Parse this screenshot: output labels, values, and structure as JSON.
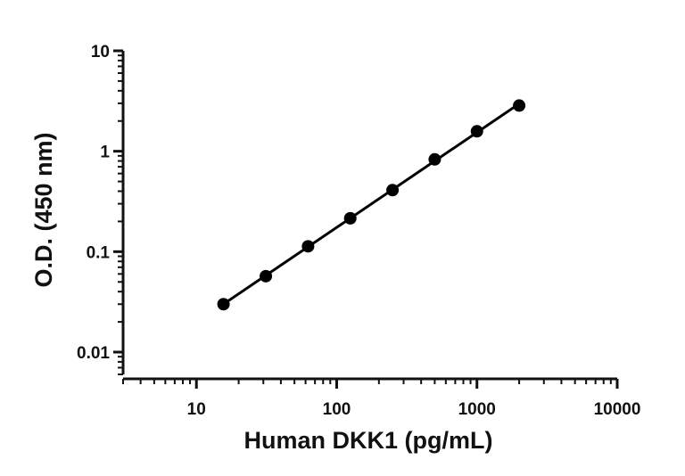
{
  "chart_data": {
    "type": "scatter",
    "title": "",
    "xlabel": "Human DKK1 (pg/mL)",
    "ylabel": "O.D. (450 nm)",
    "x_scale": "log",
    "y_scale": "log",
    "xlim": [
      3,
      10000
    ],
    "ylim": [
      0.006,
      10
    ],
    "grid": false,
    "legend": "none",
    "x_ticks": [
      {
        "value": 10,
        "label": "10"
      },
      {
        "value": 100,
        "label": "100"
      },
      {
        "value": 1000,
        "label": "1000"
      },
      {
        "value": 10000,
        "label": "10000"
      }
    ],
    "y_ticks": [
      {
        "value": 0.01,
        "label": "0.01"
      },
      {
        "value": 0.1,
        "label": "0.1"
      },
      {
        "value": 1,
        "label": "1"
      },
      {
        "value": 10,
        "label": "10"
      }
    ],
    "series": [
      {
        "x": [
          15.6,
          31.25,
          62.5,
          125,
          250,
          500,
          1000,
          2000
        ],
        "y": [
          0.03,
          0.057,
          0.113,
          0.215,
          0.41,
          0.83,
          1.58,
          2.85
        ],
        "color": "#000000",
        "fit_line": true
      }
    ]
  }
}
